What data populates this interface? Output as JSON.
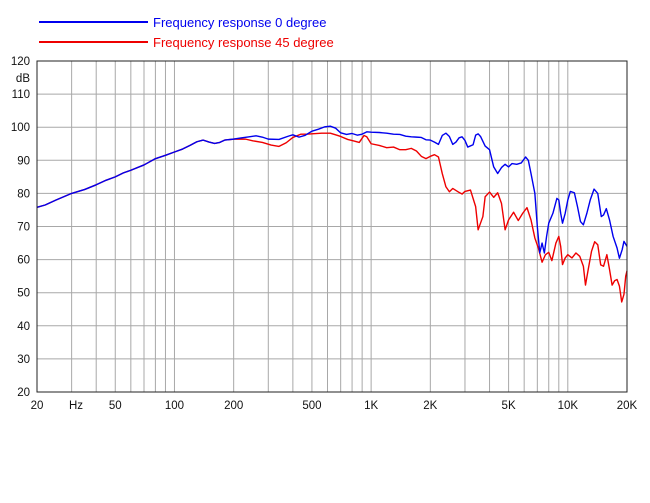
{
  "chart_data": {
    "type": "line",
    "title": "",
    "xlabel": "",
    "ylabel": "",
    "y_unit_label": "dB",
    "x_unit_label": "Hz",
    "x_scale": "log",
    "xlim": [
      20,
      20000
    ],
    "ylim": [
      20,
      120
    ],
    "grid": true,
    "legend_position": "top-left",
    "x_ticks": [
      {
        "value": 20,
        "label": "20"
      },
      {
        "value": 50,
        "label": "50"
      },
      {
        "value": 100,
        "label": "100"
      },
      {
        "value": 200,
        "label": "200"
      },
      {
        "value": 500,
        "label": "500"
      },
      {
        "value": 1000,
        "label": "1K"
      },
      {
        "value": 2000,
        "label": "2K"
      },
      {
        "value": 5000,
        "label": "5K"
      },
      {
        "value": 10000,
        "label": "10K"
      },
      {
        "value": 20000,
        "label": "20K"
      }
    ],
    "y_ticks": [
      "20",
      "30",
      "40",
      "50",
      "60",
      "70",
      "80",
      "90",
      "100",
      "110",
      "120"
    ],
    "series": [
      {
        "name": "Frequency response 0 degree",
        "color": "#0000ee",
        "points": [
          [
            20,
            75.8
          ],
          [
            22,
            76.5
          ],
          [
            25,
            78
          ],
          [
            30,
            80
          ],
          [
            35,
            81.2
          ],
          [
            40,
            82.6
          ],
          [
            45,
            84
          ],
          [
            50,
            85
          ],
          [
            55,
            86.2
          ],
          [
            60,
            87
          ],
          [
            70,
            88.6
          ],
          [
            80,
            90.5
          ],
          [
            90,
            91.5
          ],
          [
            100,
            92.5
          ],
          [
            110,
            93.4
          ],
          [
            120,
            94.5
          ],
          [
            130,
            95.6
          ],
          [
            140,
            96.1
          ],
          [
            150,
            95.5
          ],
          [
            160,
            95.1
          ],
          [
            170,
            95.4
          ],
          [
            180,
            96.1
          ],
          [
            200,
            96.4
          ],
          [
            220,
            96.8
          ],
          [
            240,
            97.1
          ],
          [
            260,
            97.4
          ],
          [
            280,
            97
          ],
          [
            300,
            96.4
          ],
          [
            340,
            96.3
          ],
          [
            380,
            97.3
          ],
          [
            400,
            97.7
          ],
          [
            430,
            97
          ],
          [
            460,
            97.5
          ],
          [
            500,
            98.8
          ],
          [
            540,
            99.4
          ],
          [
            580,
            100.1
          ],
          [
            620,
            100.3
          ],
          [
            660,
            99.7
          ],
          [
            700,
            98.3
          ],
          [
            750,
            97.8
          ],
          [
            800,
            98.1
          ],
          [
            850,
            97.6
          ],
          [
            900,
            97.9
          ],
          [
            950,
            98.6
          ],
          [
            1000,
            98.5
          ],
          [
            1100,
            98.4
          ],
          [
            1200,
            98.2
          ],
          [
            1300,
            97.9
          ],
          [
            1400,
            97.8
          ],
          [
            1500,
            97.3
          ],
          [
            1600,
            97.1
          ],
          [
            1700,
            97
          ],
          [
            1800,
            96.9
          ],
          [
            1900,
            96.2
          ],
          [
            2000,
            96.1
          ],
          [
            2100,
            95.5
          ],
          [
            2200,
            94.8
          ],
          [
            2300,
            97.5
          ],
          [
            2400,
            98.2
          ],
          [
            2500,
            97.2
          ],
          [
            2600,
            94.8
          ],
          [
            2700,
            95.5
          ],
          [
            2800,
            96.8
          ],
          [
            2900,
            97.1
          ],
          [
            3000,
            96
          ],
          [
            3100,
            94
          ],
          [
            3300,
            94.7
          ],
          [
            3400,
            97.6
          ],
          [
            3500,
            98
          ],
          [
            3600,
            97.2
          ],
          [
            3800,
            94.3
          ],
          [
            4000,
            93.2
          ],
          [
            4200,
            88
          ],
          [
            4400,
            86
          ],
          [
            4600,
            87.8
          ],
          [
            4800,
            88.8
          ],
          [
            5000,
            88
          ],
          [
            5200,
            89
          ],
          [
            5500,
            88.8
          ],
          [
            5800,
            89.2
          ],
          [
            6100,
            91
          ],
          [
            6300,
            90
          ],
          [
            6500,
            86
          ],
          [
            6800,
            80
          ],
          [
            7000,
            70
          ],
          [
            7200,
            62
          ],
          [
            7400,
            65
          ],
          [
            7600,
            62
          ],
          [
            7800,
            67
          ],
          [
            8000,
            71
          ],
          [
            8400,
            74
          ],
          [
            8800,
            78.5
          ],
          [
            9000,
            78
          ],
          [
            9200,
            74
          ],
          [
            9400,
            71
          ],
          [
            9700,
            74
          ],
          [
            10000,
            78
          ],
          [
            10300,
            80.6
          ],
          [
            10800,
            80.2
          ],
          [
            11200,
            76
          ],
          [
            11600,
            71.5
          ],
          [
            12000,
            70.5
          ],
          [
            12500,
            74
          ],
          [
            13000,
            78
          ],
          [
            13600,
            81.3
          ],
          [
            14200,
            80
          ],
          [
            14800,
            73
          ],
          [
            15200,
            73.5
          ],
          [
            15700,
            75.4
          ],
          [
            16300,
            72
          ],
          [
            17000,
            67
          ],
          [
            17800,
            63.5
          ],
          [
            18300,
            60.4
          ],
          [
            18900,
            63
          ],
          [
            19300,
            65.5
          ],
          [
            20000,
            64
          ]
        ]
      },
      {
        "name": "Frequency response 45 degree",
        "color": "#ee0000",
        "points": [
          [
            20,
            75.8
          ],
          [
            22,
            76.5
          ],
          [
            25,
            78
          ],
          [
            30,
            80
          ],
          [
            35,
            81.2
          ],
          [
            40,
            82.6
          ],
          [
            45,
            84
          ],
          [
            50,
            85
          ],
          [
            55,
            86.2
          ],
          [
            60,
            87
          ],
          [
            70,
            88.6
          ],
          [
            80,
            90.5
          ],
          [
            90,
            91.5
          ],
          [
            100,
            92.5
          ],
          [
            110,
            93.4
          ],
          [
            120,
            94.5
          ],
          [
            130,
            95.6
          ],
          [
            140,
            96.1
          ],
          [
            150,
            95.5
          ],
          [
            160,
            95.1
          ],
          [
            170,
            95.4
          ],
          [
            180,
            96.1
          ],
          [
            200,
            96.4
          ],
          [
            230,
            96.4
          ],
          [
            250,
            95.9
          ],
          [
            280,
            95.4
          ],
          [
            310,
            94.6
          ],
          [
            340,
            94.2
          ],
          [
            370,
            95.3
          ],
          [
            400,
            96.9
          ],
          [
            440,
            97.9
          ],
          [
            470,
            97.9
          ],
          [
            500,
            98
          ],
          [
            560,
            98.2
          ],
          [
            620,
            98.2
          ],
          [
            660,
            97.7
          ],
          [
            700,
            97.2
          ],
          [
            760,
            96.3
          ],
          [
            820,
            95.8
          ],
          [
            870,
            95.4
          ],
          [
            920,
            97.5
          ],
          [
            950,
            97.1
          ],
          [
            1000,
            95
          ],
          [
            1100,
            94.5
          ],
          [
            1200,
            93.8
          ],
          [
            1300,
            94
          ],
          [
            1400,
            93.2
          ],
          [
            1500,
            93.2
          ],
          [
            1600,
            93.6
          ],
          [
            1700,
            92.8
          ],
          [
            1800,
            91.2
          ],
          [
            1900,
            90.5
          ],
          [
            2000,
            91.2
          ],
          [
            2100,
            91.7
          ],
          [
            2200,
            91
          ],
          [
            2300,
            86
          ],
          [
            2400,
            82
          ],
          [
            2500,
            80.5
          ],
          [
            2600,
            81.5
          ],
          [
            2800,
            80.3
          ],
          [
            2900,
            79.8
          ],
          [
            3000,
            80.6
          ],
          [
            3200,
            81
          ],
          [
            3400,
            76
          ],
          [
            3500,
            69
          ],
          [
            3700,
            73
          ],
          [
            3800,
            79
          ],
          [
            4000,
            80.4
          ],
          [
            4200,
            78.8
          ],
          [
            4400,
            80.2
          ],
          [
            4600,
            77
          ],
          [
            4800,
            69
          ],
          [
            5000,
            72
          ],
          [
            5300,
            74.3
          ],
          [
            5600,
            71.8
          ],
          [
            5900,
            74
          ],
          [
            6200,
            75.7
          ],
          [
            6500,
            72
          ],
          [
            6800,
            66.5
          ],
          [
            7100,
            63.3
          ],
          [
            7400,
            59.2
          ],
          [
            7700,
            61.5
          ],
          [
            8000,
            62.2
          ],
          [
            8300,
            59.7
          ],
          [
            8700,
            65
          ],
          [
            9000,
            67
          ],
          [
            9200,
            64
          ],
          [
            9400,
            58.5
          ],
          [
            9700,
            60.5
          ],
          [
            10000,
            61.5
          ],
          [
            10500,
            60.5
          ],
          [
            11000,
            62
          ],
          [
            11500,
            61
          ],
          [
            12000,
            58
          ],
          [
            12300,
            52.3
          ],
          [
            12700,
            57
          ],
          [
            13200,
            62.5
          ],
          [
            13700,
            65.4
          ],
          [
            14200,
            64.5
          ],
          [
            14700,
            58.4
          ],
          [
            15200,
            58
          ],
          [
            15800,
            61.5
          ],
          [
            16300,
            57
          ],
          [
            16800,
            52.3
          ],
          [
            17300,
            53.6
          ],
          [
            17800,
            54
          ],
          [
            18300,
            52
          ],
          [
            18800,
            47.2
          ],
          [
            19300,
            49.5
          ],
          [
            19700,
            55
          ],
          [
            20000,
            56.6
          ]
        ]
      }
    ]
  }
}
